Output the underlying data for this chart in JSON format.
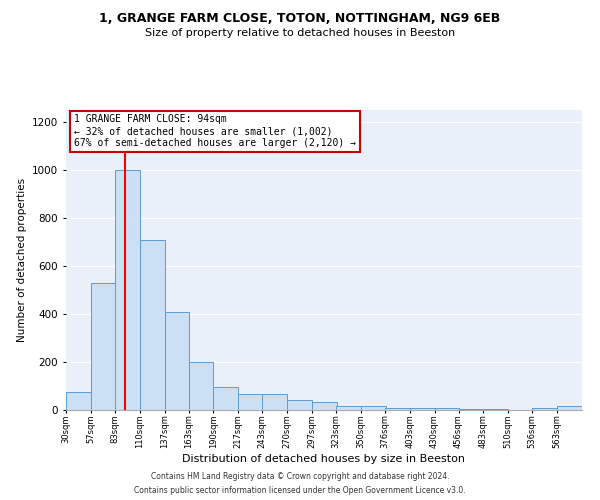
{
  "title1": "1, GRANGE FARM CLOSE, TOTON, NOTTINGHAM, NG9 6EB",
  "title2": "Size of property relative to detached houses in Beeston",
  "xlabel": "Distribution of detached houses by size in Beeston",
  "ylabel": "Number of detached properties",
  "footnote1": "Contains HM Land Registry data © Crown copyright and database right 2024.",
  "footnote2": "Contains public sector information licensed under the Open Government Licence v3.0.",
  "annotation_line1": "1 GRANGE FARM CLOSE: 94sqm",
  "annotation_line2": "← 32% of detached houses are smaller (1,002)",
  "annotation_line3": "67% of semi-detached houses are larger (2,120) →",
  "bin_labels": [
    "30sqm",
    "57sqm",
    "83sqm",
    "110sqm",
    "137sqm",
    "163sqm",
    "190sqm",
    "217sqm",
    "243sqm",
    "270sqm",
    "297sqm",
    "323sqm",
    "350sqm",
    "376sqm",
    "403sqm",
    "430sqm",
    "456sqm",
    "483sqm",
    "510sqm",
    "536sqm",
    "563sqm"
  ],
  "bin_edges": [
    30,
    57,
    83,
    110,
    137,
    163,
    190,
    217,
    243,
    270,
    297,
    323,
    350,
    376,
    403,
    430,
    456,
    483,
    510,
    536,
    563
  ],
  "bar_heights": [
    75,
    530,
    1000,
    710,
    410,
    200,
    95,
    65,
    65,
    42,
    35,
    18,
    18,
    10,
    8,
    8,
    5,
    5,
    2,
    8,
    15
  ],
  "bar_color": "#cce0f5",
  "bar_edge_color": "#5b9bd5",
  "red_line_x": 94,
  "background_color": "#eaf0fa",
  "ylim": [
    0,
    1250
  ],
  "yticks": [
    0,
    200,
    400,
    600,
    800,
    1000,
    1200
  ],
  "title1_fontsize": 9.0,
  "title2_fontsize": 8.0,
  "ylabel_fontsize": 7.5,
  "xlabel_fontsize": 8.0,
  "ytick_fontsize": 7.5,
  "xtick_fontsize": 6.0,
  "annot_fontsize": 7.0,
  "footnote_fontsize": 5.5
}
